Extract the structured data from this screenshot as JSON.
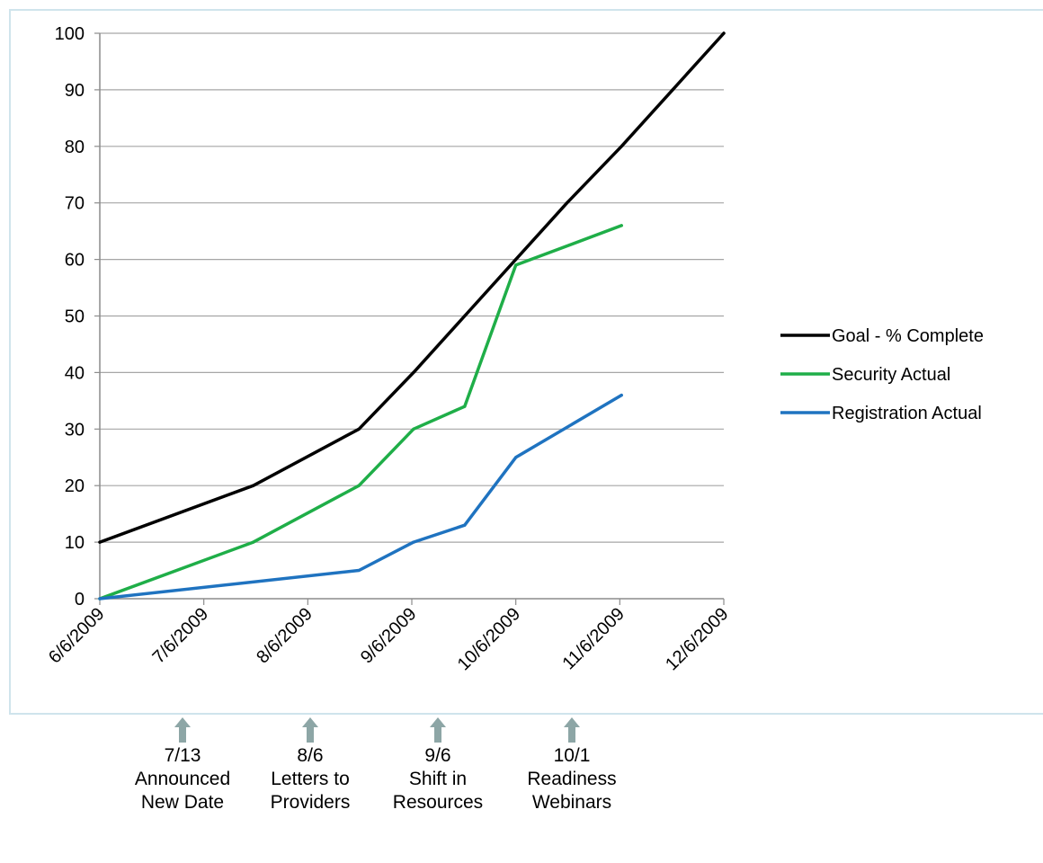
{
  "chart_data": {
    "type": "line",
    "title": "",
    "xlabel": "",
    "ylabel": "",
    "x_ticks": [
      "6/6/2009",
      "7/6/2009",
      "8/6/2009",
      "9/6/2009",
      "10/6/2009",
      "11/6/2009",
      "12/6/2009"
    ],
    "ylim": [
      0,
      100
    ],
    "y_ticks": [
      0,
      10,
      20,
      30,
      40,
      50,
      60,
      70,
      80,
      90,
      100
    ],
    "xlim": [
      "2009-06-06",
      "2009-12-06"
    ],
    "grid": "horizontal",
    "legend_position": "right",
    "series": [
      {
        "name": "Goal - % Complete",
        "color": "#000000",
        "points": [
          {
            "x": "2009-06-06",
            "y": 10
          },
          {
            "x": "2009-07-21",
            "y": 20
          },
          {
            "x": "2009-08-21",
            "y": 30
          },
          {
            "x": "2009-09-06",
            "y": 40
          },
          {
            "x": "2009-09-21",
            "y": 50
          },
          {
            "x": "2009-10-06",
            "y": 60
          },
          {
            "x": "2009-10-21",
            "y": 70
          },
          {
            "x": "2009-11-06",
            "y": 80
          },
          {
            "x": "2009-11-21",
            "y": 90
          },
          {
            "x": "2009-12-06",
            "y": 100
          }
        ]
      },
      {
        "name": "Security Actual",
        "color": "#1fae48",
        "points": [
          {
            "x": "2009-06-06",
            "y": 0
          },
          {
            "x": "2009-07-21",
            "y": 10
          },
          {
            "x": "2009-08-21",
            "y": 20
          },
          {
            "x": "2009-09-06",
            "y": 30
          },
          {
            "x": "2009-09-21",
            "y": 34
          },
          {
            "x": "2009-10-06",
            "y": 59
          },
          {
            "x": "2009-11-06",
            "y": 66
          }
        ]
      },
      {
        "name": "Registration Actual",
        "color": "#1f73c0",
        "points": [
          {
            "x": "2009-06-06",
            "y": 0
          },
          {
            "x": "2009-08-21",
            "y": 5
          },
          {
            "x": "2009-09-06",
            "y": 10
          },
          {
            "x": "2009-09-21",
            "y": 13
          },
          {
            "x": "2009-10-06",
            "y": 25
          },
          {
            "x": "2009-11-06",
            "y": 36
          }
        ]
      }
    ]
  },
  "annotations": [
    {
      "date": "7/13",
      "line1": "Announced",
      "line2": "New Date"
    },
    {
      "date": "8/6",
      "line1": "Letters to",
      "line2": "Providers"
    },
    {
      "date": "9/6",
      "line1": "Shift in",
      "line2": "Resources"
    },
    {
      "date": "10/1",
      "line1": "Readiness",
      "line2": "Webinars"
    }
  ],
  "colors": {
    "frame_border": "#cfe4ec",
    "gridline": "#a6a6a6",
    "axis": "#8c8c8c",
    "arrow": "#8da6a6"
  }
}
